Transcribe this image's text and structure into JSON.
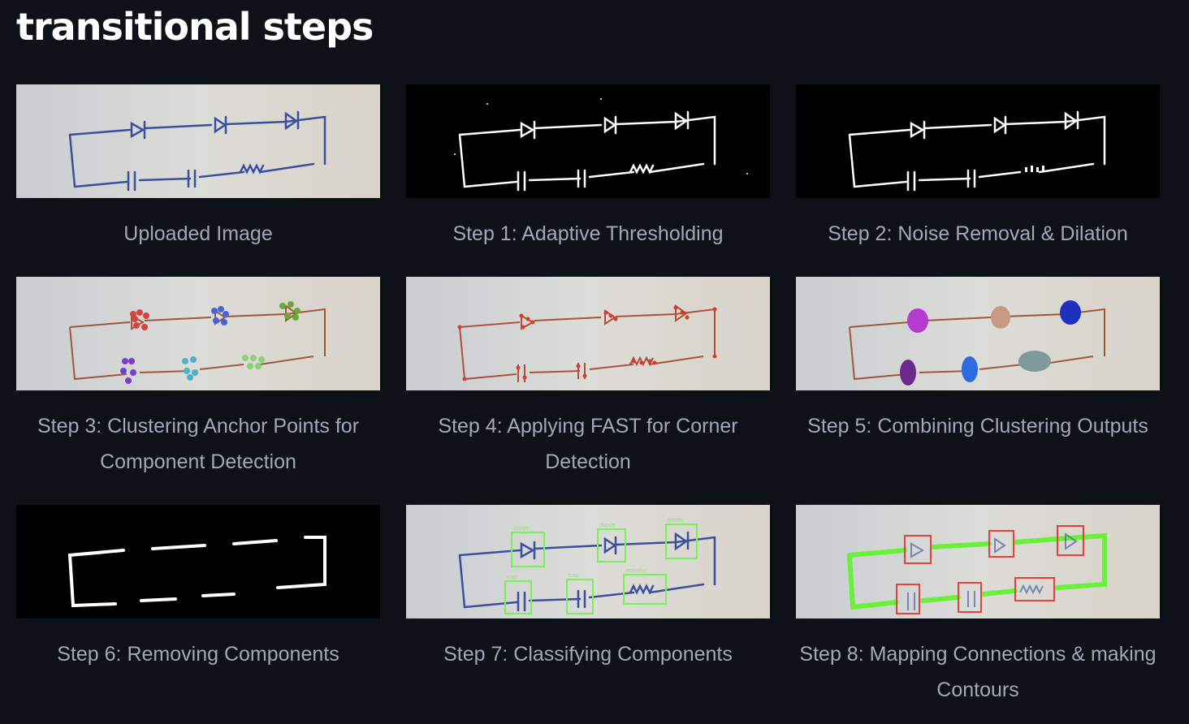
{
  "page": {
    "title": "transitional steps"
  },
  "steps": [
    {
      "caption": "Uploaded Image"
    },
    {
      "caption": "Step 1: Adaptive Thresholding"
    },
    {
      "caption": "Step 2: Noise Removal & Dilation"
    },
    {
      "caption": "Step 3: Clustering Anchor Points for Component Detection"
    },
    {
      "caption": "Step 4: Applying FAST for Corner Detection"
    },
    {
      "caption": "Step 5: Combining Clustering Outputs"
    },
    {
      "caption": "Step 6: Removing Components"
    },
    {
      "caption": "Step 7: Classifying Components"
    },
    {
      "caption": "Step 8: Mapping Connections & making Contours"
    }
  ],
  "detections": {
    "diode_label": "diode",
    "capacitor_label": "cap",
    "resistor_label": "resistor"
  },
  "colors": {
    "background": "#0e1117",
    "caption": "#a3a8b8",
    "paper": "#d7d8d6",
    "ink": "#3b4f9c",
    "detect_box": "#7cf05a",
    "contour": "#6af03a",
    "red_box": "#e0443c"
  }
}
